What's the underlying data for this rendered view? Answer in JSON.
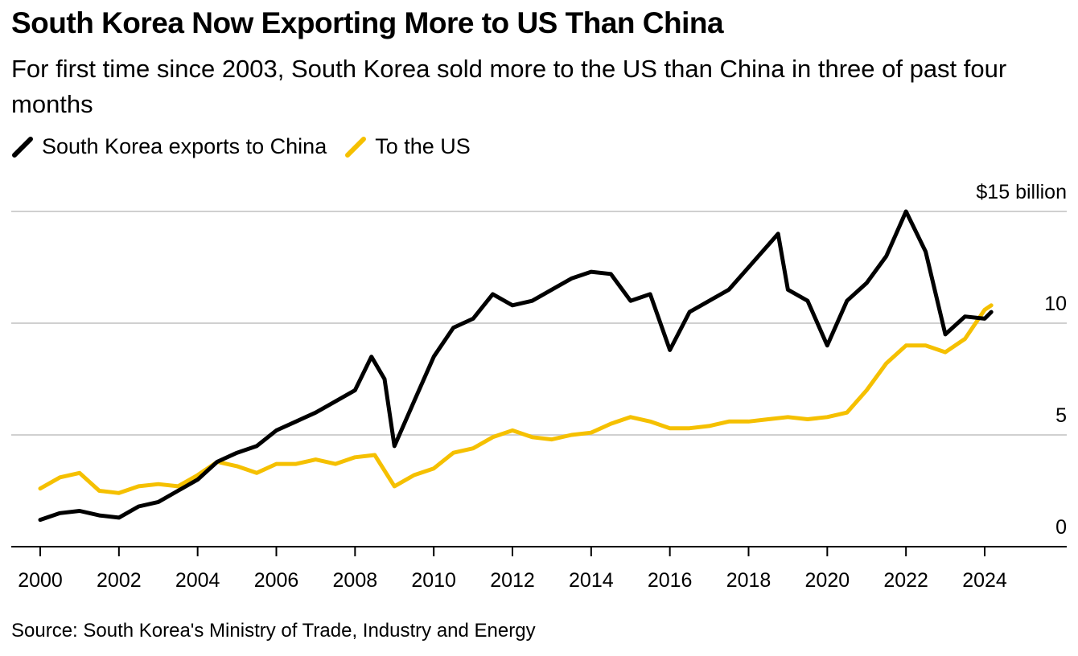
{
  "header": {
    "title": "South Korea Now Exporting More to US Than China",
    "subtitle": "For first time since 2003, South Korea sold more to the US than China in three of past four months"
  },
  "legend": {
    "items": [
      {
        "label": "South Korea exports to China",
        "color": "#000000"
      },
      {
        "label": "To the US",
        "color": "#f5c000"
      }
    ]
  },
  "footer": {
    "source": "Source: South Korea's Ministry of Trade, Industry and Energy"
  },
  "chart_data": {
    "type": "line",
    "unit_label": "$15 billion",
    "y_ticks": [
      {
        "value": 0,
        "label": "0"
      },
      {
        "value": 5,
        "label": "5"
      },
      {
        "value": 10,
        "label": "10"
      },
      {
        "value": 15,
        "label": "$15 billion"
      }
    ],
    "x_ticks": [
      "2000",
      "2002",
      "2004",
      "2006",
      "2008",
      "2010",
      "2012",
      "2014",
      "2016",
      "2018",
      "2020",
      "2022",
      "2024"
    ],
    "xlim": [
      "2000-01",
      "2026-06"
    ],
    "ylim": [
      0,
      15
    ],
    "grid": true,
    "legend_position": "top-left",
    "series": [
      {
        "name": "South Korea exports to China",
        "color": "#000000",
        "points": [
          [
            "2000-01",
            1.2
          ],
          [
            "2000-07",
            1.5
          ],
          [
            "2001-01",
            1.6
          ],
          [
            "2001-07",
            1.4
          ],
          [
            "2002-01",
            1.3
          ],
          [
            "2002-07",
            1.8
          ],
          [
            "2003-01",
            2.0
          ],
          [
            "2003-07",
            2.5
          ],
          [
            "2004-01",
            3.0
          ],
          [
            "2004-07",
            3.8
          ],
          [
            "2005-01",
            4.2
          ],
          [
            "2005-07",
            4.5
          ],
          [
            "2006-01",
            5.2
          ],
          [
            "2006-07",
            5.6
          ],
          [
            "2007-01",
            6.0
          ],
          [
            "2007-07",
            6.5
          ],
          [
            "2008-01",
            7.0
          ],
          [
            "2008-06",
            8.5
          ],
          [
            "2008-10",
            7.5
          ],
          [
            "2009-01",
            4.5
          ],
          [
            "2009-07",
            6.5
          ],
          [
            "2010-01",
            8.5
          ],
          [
            "2010-07",
            9.8
          ],
          [
            "2011-01",
            10.2
          ],
          [
            "2011-07",
            11.3
          ],
          [
            "2012-01",
            10.8
          ],
          [
            "2012-07",
            11.0
          ],
          [
            "2013-01",
            11.5
          ],
          [
            "2013-07",
            12.0
          ],
          [
            "2014-01",
            12.3
          ],
          [
            "2014-07",
            12.2
          ],
          [
            "2015-01",
            11.0
          ],
          [
            "2015-07",
            11.3
          ],
          [
            "2016-01",
            8.8
          ],
          [
            "2016-07",
            10.5
          ],
          [
            "2017-01",
            11.0
          ],
          [
            "2017-07",
            11.5
          ],
          [
            "2018-01",
            12.5
          ],
          [
            "2018-10",
            14.0
          ],
          [
            "2019-01",
            11.5
          ],
          [
            "2019-07",
            11.0
          ],
          [
            "2020-01",
            9.0
          ],
          [
            "2020-07",
            11.0
          ],
          [
            "2021-01",
            11.8
          ],
          [
            "2021-07",
            13.0
          ],
          [
            "2022-01",
            15.0
          ],
          [
            "2022-07",
            13.2
          ],
          [
            "2023-01",
            9.5
          ],
          [
            "2023-07",
            10.3
          ],
          [
            "2024-01",
            10.2
          ],
          [
            "2024-03",
            10.5
          ]
        ]
      },
      {
        "name": "To the US",
        "color": "#f5c000",
        "points": [
          [
            "2000-01",
            2.6
          ],
          [
            "2000-07",
            3.1
          ],
          [
            "2001-01",
            3.3
          ],
          [
            "2001-07",
            2.5
          ],
          [
            "2002-01",
            2.4
          ],
          [
            "2002-07",
            2.7
          ],
          [
            "2003-01",
            2.8
          ],
          [
            "2003-07",
            2.7
          ],
          [
            "2004-01",
            3.2
          ],
          [
            "2004-07",
            3.8
          ],
          [
            "2005-01",
            3.6
          ],
          [
            "2005-07",
            3.3
          ],
          [
            "2006-01",
            3.7
          ],
          [
            "2006-07",
            3.7
          ],
          [
            "2007-01",
            3.9
          ],
          [
            "2007-07",
            3.7
          ],
          [
            "2008-01",
            4.0
          ],
          [
            "2008-07",
            4.1
          ],
          [
            "2009-01",
            2.7
          ],
          [
            "2009-07",
            3.2
          ],
          [
            "2010-01",
            3.5
          ],
          [
            "2010-07",
            4.2
          ],
          [
            "2011-01",
            4.4
          ],
          [
            "2011-07",
            4.9
          ],
          [
            "2012-01",
            5.2
          ],
          [
            "2012-07",
            4.9
          ],
          [
            "2013-01",
            4.8
          ],
          [
            "2013-07",
            5.0
          ],
          [
            "2014-01",
            5.1
          ],
          [
            "2014-07",
            5.5
          ],
          [
            "2015-01",
            5.8
          ],
          [
            "2015-07",
            5.6
          ],
          [
            "2016-01",
            5.3
          ],
          [
            "2016-07",
            5.3
          ],
          [
            "2017-01",
            5.4
          ],
          [
            "2017-07",
            5.6
          ],
          [
            "2018-01",
            5.6
          ],
          [
            "2018-07",
            5.7
          ],
          [
            "2019-01",
            5.8
          ],
          [
            "2019-07",
            5.7
          ],
          [
            "2020-01",
            5.8
          ],
          [
            "2020-07",
            6.0
          ],
          [
            "2021-01",
            7.0
          ],
          [
            "2021-07",
            8.2
          ],
          [
            "2022-01",
            9.0
          ],
          [
            "2022-07",
            9.0
          ],
          [
            "2023-01",
            8.7
          ],
          [
            "2023-07",
            9.3
          ],
          [
            "2024-01",
            10.6
          ],
          [
            "2024-03",
            10.8
          ]
        ]
      }
    ]
  }
}
